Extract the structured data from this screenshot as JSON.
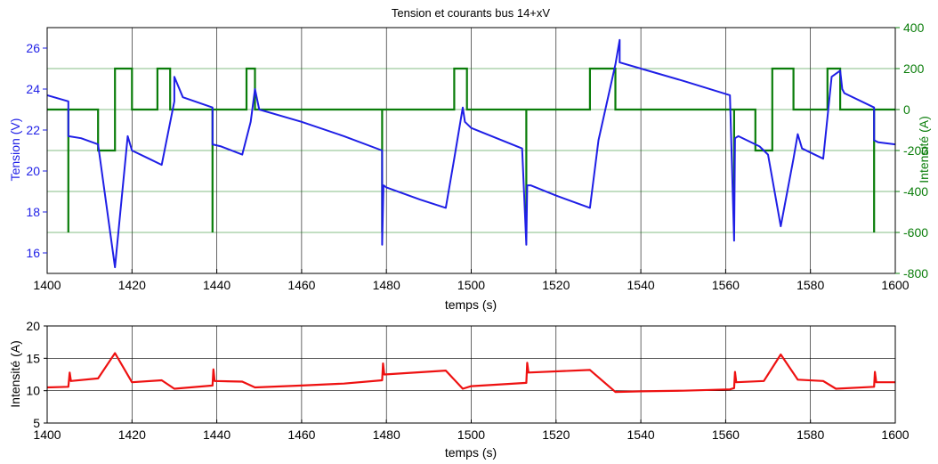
{
  "colors": {
    "tension": "#1f1fe6",
    "current_main": "#0a7d0a",
    "current_bottom": "#ee1111",
    "grid": "#000000"
  },
  "chart_data": [
    {
      "type": "line",
      "title": "Tension et courants bus 14+xV",
      "xlabel": "temps (s)",
      "ylabel_left": "Tension (V)",
      "ylabel_right": "Intensité  (A)",
      "xlim": [
        1400,
        1600
      ],
      "ylim_left": [
        15,
        27
      ],
      "ylim_right": [
        -800,
        400
      ],
      "x_ticks": [
        1400,
        1420,
        1440,
        1460,
        1480,
        1500,
        1520,
        1540,
        1560,
        1580,
        1600
      ],
      "y_ticks_left": [
        16,
        18,
        20,
        22,
        24,
        26
      ],
      "y_ticks_right": [
        -800,
        -600,
        -400,
        -200,
        0,
        200,
        400
      ],
      "grid": true,
      "series": [
        {
          "axis": "left",
          "x": [
            1400,
            1405,
            1405,
            1408,
            1412,
            1416,
            1419,
            1420,
            1424,
            1427,
            1430,
            1430,
            1432,
            1439,
            1439,
            1441,
            1446,
            1448,
            1449,
            1450,
            1460,
            1470,
            1479,
            1479,
            1479.3,
            1480,
            1488,
            1494,
            1496,
            1498,
            1498.5,
            1500,
            1506,
            1512,
            1513,
            1513.2,
            1514,
            1520,
            1528,
            1530,
            1534,
            1535,
            1535,
            1540,
            1550,
            1561,
            1562,
            1562.2,
            1563,
            1568,
            1570,
            1573,
            1576,
            1577,
            1578,
            1583,
            1585,
            1587,
            1587.5,
            1588,
            1595,
            1595,
            1596,
            1600
          ],
          "y": [
            23.7,
            23.4,
            21.7,
            21.6,
            21.3,
            15.3,
            21.7,
            21.0,
            20.6,
            20.3,
            23.4,
            24.6,
            23.6,
            23.1,
            21.3,
            21.2,
            20.8,
            22.4,
            24.0,
            23.0,
            22.4,
            21.7,
            21.0,
            16.4,
            19.3,
            19.2,
            18.6,
            18.2,
            20.6,
            23.1,
            22.4,
            22.1,
            21.6,
            21.1,
            16.4,
            19.3,
            19.3,
            18.8,
            18.2,
            21.5,
            25.2,
            26.4,
            25.3,
            25.0,
            24.4,
            23.7,
            16.6,
            21.6,
            21.7,
            21.2,
            20.8,
            17.3,
            20.6,
            21.8,
            21.1,
            20.6,
            24.6,
            24.9,
            24.0,
            23.8,
            23.1,
            21.5,
            21.4,
            21.3
          ]
        },
        {
          "axis": "right",
          "x": [
            1400,
            1405,
            1405,
            1405,
            1405,
            1412,
            1412,
            1416,
            1416,
            1420,
            1420,
            1426,
            1426,
            1429,
            1429,
            1439,
            1439,
            1439,
            1439,
            1447,
            1447,
            1449,
            1449,
            1479,
            1479,
            1479,
            1479,
            1496,
            1496,
            1499,
            1499,
            1513,
            1513,
            1513,
            1513,
            1528,
            1528,
            1534,
            1534,
            1562,
            1562,
            1562,
            1562,
            1567,
            1567,
            1571,
            1571,
            1576,
            1576,
            1584,
            1584,
            1587,
            1587,
            1595,
            1595,
            1595,
            1595,
            1600
          ],
          "y": [
            0,
            0,
            -600,
            -600,
            0,
            0,
            -200,
            -200,
            200,
            200,
            0,
            0,
            200,
            200,
            0,
            0,
            -600,
            -600,
            0,
            0,
            200,
            200,
            0,
            0,
            -600,
            -600,
            0,
            0,
            200,
            200,
            0,
            0,
            -600,
            -600,
            0,
            0,
            200,
            200,
            0,
            0,
            -600,
            -600,
            0,
            0,
            -200,
            -200,
            200,
            200,
            0,
            0,
            200,
            200,
            0,
            0,
            -600,
            -600,
            0,
            0
          ]
        }
      ]
    },
    {
      "type": "line",
      "title": "",
      "xlabel": "temps (s)",
      "ylabel": "Intensité  (A)",
      "xlim": [
        1400,
        1600
      ],
      "ylim": [
        5,
        20
      ],
      "x_ticks": [
        1400,
        1420,
        1440,
        1460,
        1480,
        1500,
        1520,
        1540,
        1560,
        1580,
        1600
      ],
      "y_ticks": [
        5,
        10,
        15,
        20
      ],
      "grid": true,
      "series": [
        {
          "x": [
            1400,
            1405,
            1405.3,
            1405.6,
            1412,
            1416,
            1420,
            1427,
            1430,
            1439,
            1439.2,
            1439.5,
            1446,
            1449,
            1460,
            1470,
            1479,
            1479.2,
            1479.5,
            1494,
            1498,
            1500,
            1513,
            1513.2,
            1513.5,
            1528,
            1534,
            1540,
            1550,
            1561,
            1562,
            1562.2,
            1562.5,
            1569,
            1573,
            1577,
            1583,
            1586,
            1595,
            1595.2,
            1595.5,
            1600
          ],
          "y": [
            10.5,
            10.6,
            12.8,
            11.5,
            11.9,
            15.8,
            11.3,
            11.6,
            10.3,
            10.8,
            13.3,
            11.5,
            11.4,
            10.5,
            10.8,
            11.1,
            11.6,
            14.2,
            12.5,
            13.1,
            10.3,
            10.7,
            11.2,
            14.3,
            12.8,
            13.2,
            9.8,
            9.9,
            10.0,
            10.2,
            10.4,
            12.9,
            11.3,
            11.5,
            15.6,
            11.7,
            11.5,
            10.3,
            10.6,
            12.9,
            11.3,
            11.3
          ]
        }
      ]
    }
  ]
}
